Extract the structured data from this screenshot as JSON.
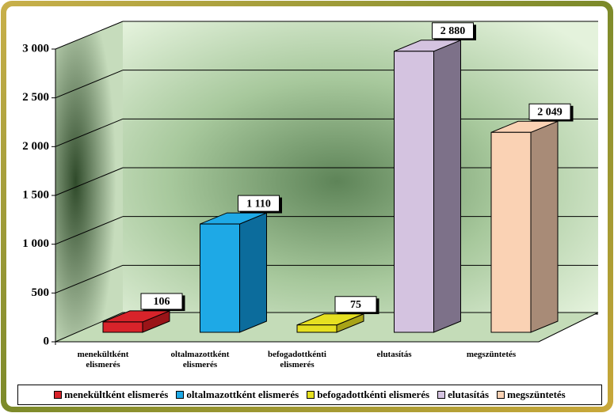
{
  "chart_data": {
    "type": "bar3d",
    "categories": [
      "menekültként elismerés",
      "oltalmazottként elismerés",
      "befogadottkénti elismerés",
      "elutasítás",
      "megszüntetés"
    ],
    "values": [
      106,
      1110,
      75,
      2880,
      2049
    ],
    "value_labels": [
      "106",
      "1 110",
      "75",
      "2 880",
      "2 049"
    ],
    "colors": [
      "#d8232a",
      "#1ea9e6",
      "#e6e021",
      "#d4c3e0",
      "#fad2b4"
    ],
    "side_colors": [
      "#9a1418",
      "#0c6c9c",
      "#a8a317",
      "#7d7189",
      "#a88b77"
    ],
    "ylim": [
      0,
      3000
    ],
    "yticks": [
      0,
      500,
      {
        "value": 1000,
        "label": "1 000"
      },
      {
        "value": 1500,
        "label": "1 500"
      },
      {
        "value": 2000,
        "label": "2 000"
      },
      {
        "value": 2500,
        "label": "2 500"
      },
      {
        "value": 3000,
        "label": "3 000"
      }
    ],
    "grid": true,
    "legend": "bottom"
  }
}
